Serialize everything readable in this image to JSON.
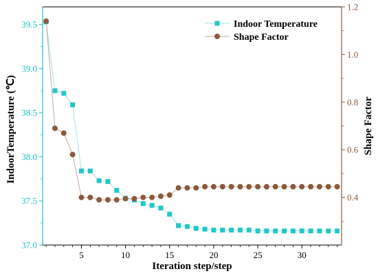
{
  "chart_data": {
    "type": "line",
    "xlabel": "Iteration step/step",
    "ylabel_left": "IndoorTemperature (℃)",
    "ylabel_right": "Shape Factor",
    "xlim": [
      0.6,
      34.5
    ],
    "ylim_left": [
      37.0,
      39.7
    ],
    "ylim_right": [
      0.2,
      1.2
    ],
    "x_ticks": [
      5,
      10,
      15,
      20,
      25,
      30
    ],
    "y_ticks_left": [
      37.0,
      37.5,
      38.0,
      38.5,
      39.0,
      39.5
    ],
    "y_ticks_right": [
      0.4,
      0.6,
      0.8,
      1.0,
      1.2
    ],
    "legend_position": "top-right",
    "grid": false,
    "colors": {
      "temperature": "#22c7c7",
      "temperature_line": "#9fe3e3",
      "shape": "#8b5a3c",
      "shape_line": "#c7a99a",
      "left_axis": "#19c2c2",
      "right_axis": "#8b5a3c"
    },
    "x": [
      1,
      2,
      3,
      4,
      5,
      6,
      7,
      8,
      9,
      10,
      11,
      12,
      13,
      14,
      15,
      16,
      17,
      18,
      19,
      20,
      21,
      22,
      23,
      24,
      25,
      26,
      27,
      28,
      29,
      30,
      31,
      32,
      33,
      34
    ],
    "series": [
      {
        "name": "Indoor Temperature",
        "axis": "left",
        "marker": "square",
        "values": [
          39.53,
          38.75,
          38.72,
          38.59,
          37.84,
          37.84,
          37.73,
          37.72,
          37.62,
          37.53,
          37.51,
          37.47,
          37.45,
          37.42,
          37.35,
          37.22,
          37.21,
          37.19,
          37.18,
          37.17,
          37.17,
          37.17,
          37.17,
          37.17,
          37.16,
          37.16,
          37.16,
          37.16,
          37.16,
          37.16,
          37.16,
          37.16,
          37.16,
          37.16
        ]
      },
      {
        "name": "Shape Factor",
        "axis": "right",
        "marker": "circle",
        "values": [
          1.14,
          0.69,
          0.67,
          0.58,
          0.4,
          0.4,
          0.39,
          0.39,
          0.39,
          0.395,
          0.395,
          0.4,
          0.4,
          0.405,
          0.41,
          0.44,
          0.44,
          0.44,
          0.445,
          0.445,
          0.445,
          0.445,
          0.445,
          0.445,
          0.445,
          0.445,
          0.445,
          0.445,
          0.445,
          0.445,
          0.445,
          0.445,
          0.445,
          0.445
        ]
      }
    ]
  }
}
